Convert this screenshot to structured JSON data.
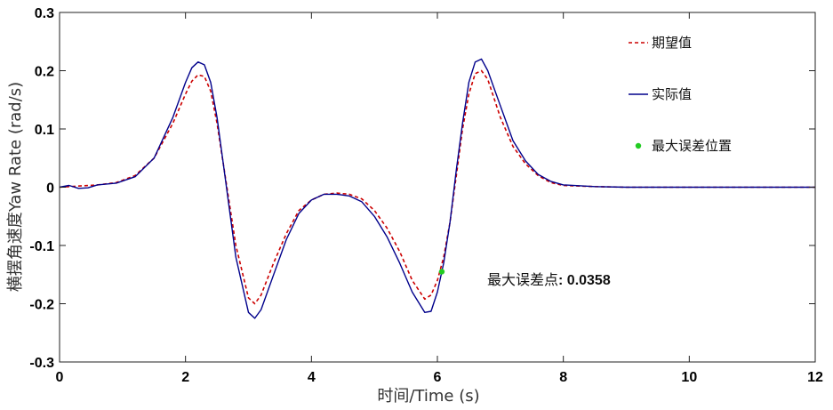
{
  "chart_data": {
    "type": "line",
    "xlabel": "时间/Time (s)",
    "ylabel": "横摆角速度Yaw Rate (rad/s)",
    "xlim": [
      0,
      12
    ],
    "ylim": [
      -0.3,
      0.3
    ],
    "xticks": [
      0,
      2,
      4,
      6,
      8,
      10,
      12
    ],
    "yticks": [
      0.3,
      0.2,
      0.1,
      0,
      -0.1,
      -0.2,
      -0.3
    ],
    "xtick_labels": [
      "0",
      "2",
      "4",
      "6",
      "8",
      "10",
      "12"
    ],
    "ytick_labels": [
      "0.3",
      "0.2",
      "0.1",
      "0",
      "-0.1",
      "-0.2",
      "-0.3"
    ],
    "grid": false,
    "legend_position": "top-right",
    "series": [
      {
        "name": "期望值",
        "style": "dashed",
        "color": "#cc0000",
        "x": [
          0,
          0.3,
          0.6,
          0.9,
          1.2,
          1.5,
          1.8,
          2.0,
          2.1,
          2.2,
          2.3,
          2.4,
          2.5,
          2.6,
          2.8,
          3.0,
          3.1,
          3.2,
          3.4,
          3.6,
          3.8,
          4.0,
          4.2,
          4.4,
          4.6,
          4.8,
          5.0,
          5.2,
          5.4,
          5.6,
          5.8,
          5.9,
          6.0,
          6.1,
          6.2,
          6.3,
          6.4,
          6.5,
          6.6,
          6.7,
          6.8,
          7.0,
          7.2,
          7.4,
          7.6,
          7.8,
          8.0,
          8.5,
          9.0,
          10.0,
          11.0,
          12.0
        ],
        "values": [
          0,
          0.002,
          0.004,
          0.008,
          0.02,
          0.05,
          0.11,
          0.16,
          0.182,
          0.193,
          0.19,
          0.165,
          0.11,
          0.04,
          -0.1,
          -0.19,
          -0.2,
          -0.185,
          -0.13,
          -0.08,
          -0.04,
          -0.022,
          -0.012,
          -0.01,
          -0.012,
          -0.02,
          -0.04,
          -0.07,
          -0.11,
          -0.16,
          -0.192,
          -0.185,
          -0.16,
          -0.12,
          -0.06,
          0.02,
          0.1,
          0.16,
          0.195,
          0.2,
          0.185,
          0.12,
          0.07,
          0.04,
          0.02,
          0.008,
          0.003,
          0.001,
          0,
          0,
          0,
          0
        ]
      },
      {
        "name": "实际值",
        "style": "solid",
        "color": "#00008b",
        "x": [
          0,
          0.15,
          0.3,
          0.45,
          0.6,
          0.9,
          1.2,
          1.5,
          1.8,
          2.0,
          2.1,
          2.2,
          2.3,
          2.4,
          2.5,
          2.6,
          2.8,
          3.0,
          3.1,
          3.2,
          3.4,
          3.6,
          3.8,
          4.0,
          4.2,
          4.4,
          4.6,
          4.8,
          5.0,
          5.2,
          5.4,
          5.6,
          5.8,
          5.9,
          6.0,
          6.1,
          6.2,
          6.3,
          6.4,
          6.5,
          6.6,
          6.7,
          6.8,
          7.0,
          7.2,
          7.4,
          7.6,
          7.8,
          8.0,
          8.5,
          9.0,
          10.0,
          11.0,
          12.0
        ],
        "values": [
          0,
          0.003,
          -0.002,
          -0.001,
          0.004,
          0.007,
          0.018,
          0.05,
          0.12,
          0.18,
          0.205,
          0.215,
          0.21,
          0.18,
          0.12,
          0.04,
          -0.12,
          -0.215,
          -0.225,
          -0.21,
          -0.15,
          -0.09,
          -0.045,
          -0.022,
          -0.012,
          -0.012,
          -0.015,
          -0.025,
          -0.05,
          -0.085,
          -0.13,
          -0.18,
          -0.215,
          -0.213,
          -0.18,
          -0.13,
          -0.06,
          0.03,
          0.11,
          0.18,
          0.215,
          0.22,
          0.2,
          0.14,
          0.08,
          0.045,
          0.022,
          0.01,
          0.004,
          0.001,
          0,
          0,
          0,
          0
        ]
      }
    ],
    "markers": [
      {
        "name": "最大误差位置",
        "x": 6.07,
        "y": -0.145,
        "color": "#22cc22"
      }
    ],
    "annotation": {
      "prefix": "最大误差点",
      "value": ": 0.0358"
    },
    "legend": [
      {
        "label": "期望值",
        "style": "dashed",
        "color": "#cc0000"
      },
      {
        "label": "实际值",
        "style": "solid",
        "color": "#00008b"
      },
      {
        "label": "最大误差位置",
        "style": "marker",
        "color": "#22cc22"
      }
    ]
  }
}
